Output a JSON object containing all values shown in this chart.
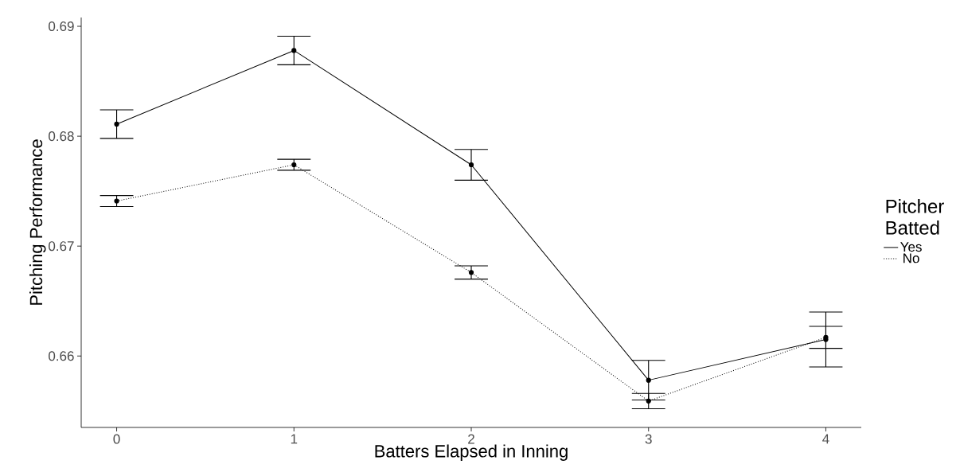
{
  "chart_data": {
    "type": "line",
    "xlabel": "Batters Elapsed in Inning",
    "ylabel": "Pitching Performance",
    "legend_title": "Pitcher Batted",
    "x": [
      0,
      1,
      2,
      3,
      4
    ],
    "xlim": [
      -0.2,
      4.2
    ],
    "xticks": [
      0,
      1,
      2,
      3,
      4
    ],
    "ylim": [
      0.6535,
      0.6908
    ],
    "yticks": [
      0.66,
      0.67,
      0.68,
      0.69
    ],
    "grid": false,
    "legend": "right",
    "marker": "circle",
    "series": [
      {
        "name": "Yes",
        "color": "#000000",
        "line_style": "solid",
        "values": [
          0.6811,
          0.6878,
          0.6774,
          0.6578,
          0.6615
        ],
        "errors": [
          0.0013,
          0.0013,
          0.0014,
          0.0018,
          0.0025
        ]
      },
      {
        "name": "No",
        "color": "#000000",
        "line_style": "dotted",
        "values": [
          0.6741,
          0.6774,
          0.6676,
          0.6559,
          0.6617
        ],
        "errors": [
          0.0005,
          0.0005,
          0.0006,
          0.0007,
          0.001
        ]
      }
    ]
  }
}
